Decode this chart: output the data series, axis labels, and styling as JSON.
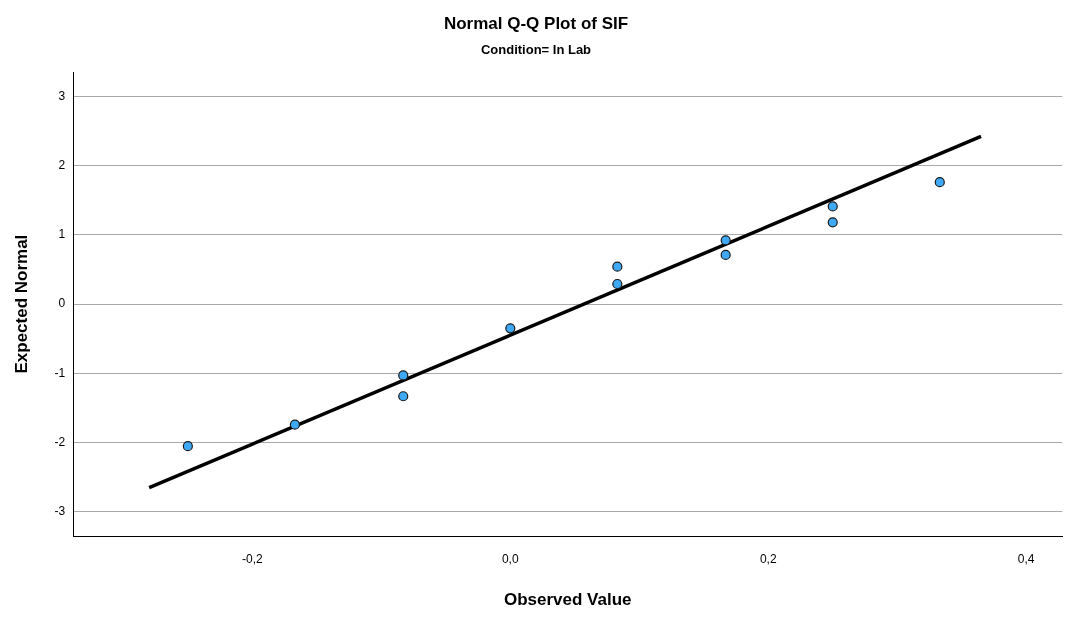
{
  "chart_data": {
    "type": "scatter",
    "title": "Normal Q-Q Plot of SIF",
    "subtitle": "Condition= In Lab",
    "xlabel": "Observed Value",
    "ylabel": "Expected Normal",
    "series": [
      {
        "color": "#3fa9f5",
        "marker": "circle",
        "x": [
          -0.25,
          -0.167,
          -0.083,
          -0.083,
          0,
          0.083,
          0.083,
          0.167,
          0.167,
          0.25,
          0.25,
          0.333
        ],
        "values": [
          -2.05,
          -1.74,
          -1.03,
          -1.33,
          -0.35,
          0.54,
          0.29,
          0.92,
          0.71,
          1.41,
          1.18,
          1.76
        ]
      },
      {
        "type": "line",
        "marker": "none",
        "color": "#000000",
        "x": [
          -0.28,
          0.365
        ],
        "values": [
          -2.65,
          2.42
        ]
      }
    ],
    "xlim": [
      -0.339,
      0.428
    ],
    "xticks": [
      {
        "value": -0.2,
        "label": "-0,2"
      },
      {
        "value": 0,
        "label": "0,0"
      },
      {
        "value": 0.2,
        "label": "0,2"
      },
      {
        "value": 0.4,
        "label": "0,4"
      }
    ],
    "ylim": [
      -3.35,
      3.35
    ],
    "yticks": [
      -3,
      -2,
      -1,
      0,
      1,
      2,
      3
    ],
    "grid": "y",
    "legend": false
  }
}
